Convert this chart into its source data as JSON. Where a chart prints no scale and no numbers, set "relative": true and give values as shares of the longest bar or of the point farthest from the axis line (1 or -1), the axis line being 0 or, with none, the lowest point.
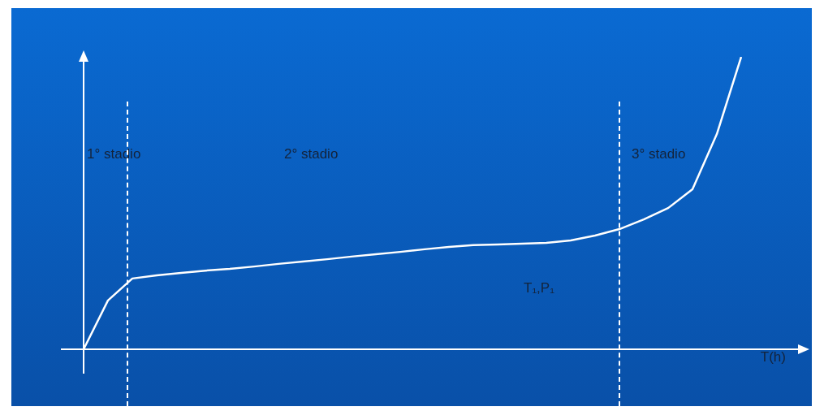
{
  "chart_data": {
    "type": "line",
    "relative": true,
    "xlabel": "T(h)",
    "categories": [
      null,
      null,
      null,
      null,
      null,
      null,
      null,
      null,
      null,
      null,
      null,
      null,
      null,
      null,
      null,
      null,
      null,
      null,
      null,
      null,
      null,
      null,
      null,
      null,
      null,
      null,
      null,
      null
    ],
    "series": [
      {
        "color": "#ffffff",
        "values": [
          0,
          0.167,
          0.242,
          0.253,
          0.261,
          0.269,
          0.275,
          0.283,
          0.292,
          0.3,
          0.308,
          0.317,
          0.325,
          0.333,
          0.342,
          0.35,
          0.356,
          0.358,
          0.361,
          0.364,
          0.372,
          0.389,
          0.411,
          0.444,
          0.483,
          0.547,
          0.736,
          1
        ]
      }
    ],
    "annotations": [
      "1° stadio",
      "2° stadio",
      "3° stadio",
      "T₁,P₁"
    ],
    "legend": false,
    "marker": "none",
    "line_style": "solid"
  }
}
